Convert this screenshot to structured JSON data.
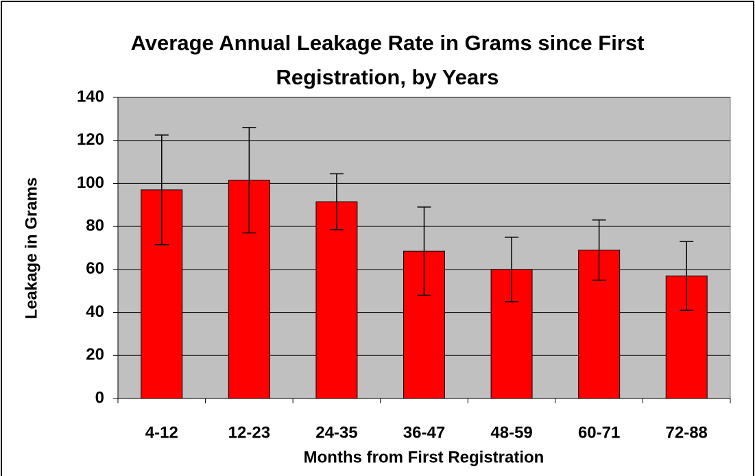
{
  "chart_data": {
    "type": "bar",
    "title": "Average Annual Leakage Rate in Grams since First Registration, by Years",
    "x_label": "Months from First Registration",
    "y_label": "Leakage in Grams",
    "categories": [
      "4-12",
      "12-23",
      "24-35",
      "36-47",
      "48-59",
      "60-71",
      "72-88"
    ],
    "values": [
      97,
      101.5,
      91.5,
      68.5,
      60,
      69,
      57
    ],
    "errors": [
      25.5,
      24.5,
      13,
      20.5,
      15,
      14,
      16
    ],
    "color": "#ff0000",
    "ylim": [
      0,
      140
    ],
    "yticks": [
      0,
      20,
      40,
      60,
      80,
      100,
      120,
      140
    ],
    "grid": true
  }
}
